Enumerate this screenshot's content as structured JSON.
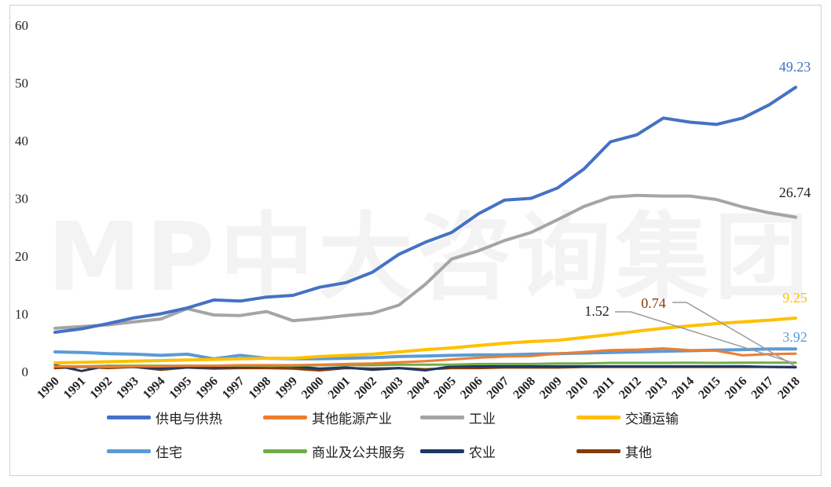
{
  "watermark": "MP中大咨询集团",
  "chart_data": {
    "type": "line",
    "title": "",
    "xlabel": "",
    "ylabel": "",
    "ylim": [
      0,
      60
    ],
    "yticks": [
      0,
      10,
      20,
      30,
      40,
      50,
      60
    ],
    "grid": false,
    "legend_position": "bottom",
    "x": [
      1990,
      1991,
      1992,
      1993,
      1994,
      1995,
      1996,
      1997,
      1998,
      1999,
      2000,
      2001,
      2002,
      2003,
      2004,
      2005,
      2006,
      2007,
      2008,
      2009,
      2010,
      2011,
      2012,
      2013,
      2014,
      2015,
      2016,
      2017,
      2018
    ],
    "series": [
      {
        "name": "供电与供热",
        "color": "#4472C4",
        "width": 4,
        "values": [
          6.8,
          7.4,
          8.3,
          9.3,
          10.0,
          11.0,
          12.4,
          12.2,
          12.9,
          13.2,
          14.6,
          15.4,
          17.2,
          20.3,
          22.4,
          24.1,
          27.3,
          29.7,
          30.0,
          31.8,
          35.1,
          39.8,
          41.0,
          43.9,
          43.2,
          42.8,
          43.9,
          46.2,
          49.23
        ]
      },
      {
        "name": "其他能源产业",
        "color": "#ED7D31",
        "width": 3,
        "values": [
          0.9,
          0.8,
          0.8,
          0.9,
          0.9,
          1.0,
          1.0,
          1.1,
          1.1,
          1.1,
          1.2,
          1.3,
          1.4,
          1.6,
          1.8,
          2.1,
          2.4,
          2.6,
          2.7,
          3.1,
          3.4,
          3.7,
          3.8,
          4.0,
          3.7,
          3.6,
          2.8,
          3.0,
          3.1
        ]
      },
      {
        "name": "工业",
        "color": "#A5A5A5",
        "width": 4,
        "values": [
          7.5,
          7.8,
          8.1,
          8.6,
          9.1,
          10.9,
          9.8,
          9.7,
          10.4,
          8.8,
          9.2,
          9.7,
          10.1,
          11.5,
          15.1,
          19.5,
          20.9,
          22.7,
          24.1,
          26.3,
          28.6,
          30.2,
          30.5,
          30.4,
          30.4,
          29.8,
          28.5,
          27.5,
          26.74
        ]
      },
      {
        "name": "交通运输",
        "color": "#FFC000",
        "width": 4,
        "values": [
          1.5,
          1.6,
          1.7,
          1.8,
          1.9,
          2.0,
          2.1,
          2.2,
          2.3,
          2.3,
          2.6,
          2.8,
          3.0,
          3.4,
          3.8,
          4.1,
          4.5,
          4.9,
          5.2,
          5.4,
          5.9,
          6.4,
          7.0,
          7.5,
          7.9,
          8.3,
          8.6,
          8.9,
          9.25
        ]
      },
      {
        "name": "住宅",
        "color": "#5B9BD5",
        "width": 4,
        "values": [
          3.4,
          3.3,
          3.1,
          3.0,
          2.8,
          3.0,
          2.2,
          2.8,
          2.3,
          2.2,
          2.2,
          2.3,
          2.4,
          2.6,
          2.7,
          2.8,
          2.9,
          2.9,
          3.0,
          3.1,
          3.2,
          3.3,
          3.4,
          3.5,
          3.6,
          3.7,
          3.8,
          3.9,
          3.92
        ]
      },
      {
        "name": "商业及公共服务",
        "color": "#70AD47",
        "width": 3,
        "values": [
          0.9,
          0.9,
          1.0,
          1.0,
          1.0,
          1.0,
          1.0,
          1.0,
          1.0,
          1.0,
          1.1,
          1.1,
          1.1,
          1.2,
          1.2,
          1.2,
          1.3,
          1.3,
          1.3,
          1.4,
          1.4,
          1.5,
          1.5,
          1.5,
          1.52,
          1.5,
          1.52,
          1.52,
          1.52
        ]
      },
      {
        "name": "农业",
        "color": "#1F3864",
        "width": 3,
        "values": [
          1.1,
          0.1,
          1.0,
          0.8,
          0.6,
          0.7,
          0.7,
          0.8,
          1.0,
          0.9,
          0.5,
          0.7,
          0.3,
          0.6,
          0.2,
          0.9,
          0.9,
          0.9,
          0.9,
          0.9,
          0.9,
          0.9,
          0.9,
          0.9,
          0.9,
          0.9,
          0.9,
          0.8,
          0.74
        ]
      },
      {
        "name": "其他",
        "color": "#843C0C",
        "width": 3,
        "values": [
          0.6,
          0.8,
          0.6,
          0.8,
          0.3,
          0.7,
          0.5,
          0.6,
          0.6,
          0.5,
          0.2,
          0.6,
          0.5,
          0.6,
          0.4,
          0.6,
          0.6,
          0.7,
          0.7,
          0.7,
          0.8,
          0.8,
          0.8,
          0.8,
          0.8,
          0.8,
          0.8,
          0.8,
          0.8
        ]
      }
    ],
    "annotations": [
      {
        "text": "49.23",
        "series": "供电与供热",
        "color": "#4472C4"
      },
      {
        "text": "26.74",
        "series": "工业",
        "color": "#222222"
      },
      {
        "text": "9.25",
        "series": "交通运输",
        "color": "#FFC000"
      },
      {
        "text": "3.92",
        "series": "住宅",
        "color": "#5B9BD5"
      },
      {
        "text": "1.52",
        "series": "商业及公共服务",
        "color": "#222222"
      },
      {
        "text": "0.74",
        "series": "农业",
        "color": "#843C0C"
      }
    ]
  }
}
